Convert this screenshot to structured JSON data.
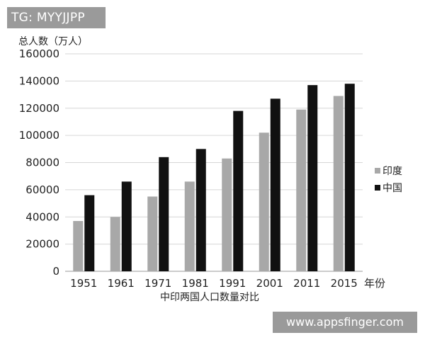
{
  "overlay": {
    "tag": "TG: MYYJJPP",
    "watermark": "www.appsfinger.com"
  },
  "chart_data": {
    "type": "bar",
    "title": "",
    "ylabel": "总人数（万人）",
    "xlabel": "中印两国人口数量对比",
    "x_unit": "年份",
    "categories": [
      "1951",
      "1961",
      "1971",
      "1981",
      "1991",
      "2001",
      "2011",
      "2015"
    ],
    "y_ticks": [
      "0",
      "20000",
      "40000",
      "60000",
      "80000",
      "100000",
      "120000",
      "140000",
      "160000"
    ],
    "ylim": [
      0,
      160000
    ],
    "grid": true,
    "legend_position": "right",
    "series": [
      {
        "name": "印度",
        "color": "#a8a8a8",
        "values": [
          37000,
          40000,
          55000,
          66000,
          83000,
          102000,
          119000,
          129000
        ]
      },
      {
        "name": "中国",
        "color": "#111111",
        "values": [
          56000,
          66000,
          84000,
          90000,
          118000,
          127000,
          137000,
          138000
        ]
      }
    ]
  }
}
